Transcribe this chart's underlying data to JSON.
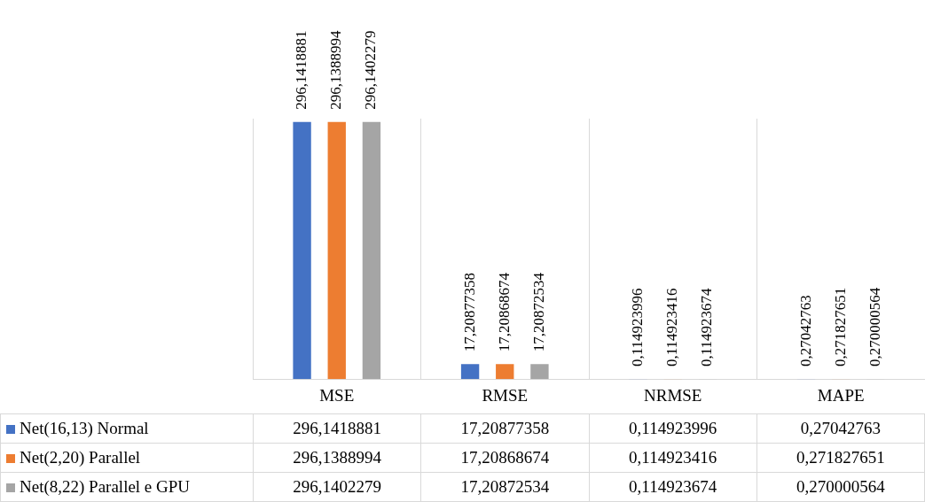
{
  "chart_data": {
    "type": "bar",
    "categories": [
      "MSE",
      "RMSE",
      "NRMSE",
      "MAPE"
    ],
    "legend": "bottom",
    "grid": "x",
    "series": [
      {
        "name": "Net(16,13) Normal",
        "color": "#4472c4",
        "values": [
          296.1418881,
          17.20877358,
          0.114923996,
          0.27042763
        ],
        "value_labels": [
          "296,1418881",
          "17,20877358",
          "0,114923996",
          "0,27042763"
        ]
      },
      {
        "name": "Net(2,20) Parallel",
        "color": "#ed7d31",
        "values": [
          296.1388994,
          17.20868674,
          0.114923416,
          0.271827651
        ],
        "value_labels": [
          "296,1388994",
          "17,20868674",
          "0,114923416",
          "0,271827651"
        ]
      },
      {
        "name": "Net(8,22) Parallel e GPU",
        "color": "#a5a5a5",
        "values": [
          296.1402279,
          17.20872534,
          0.114923674,
          0.270000564
        ],
        "value_labels": [
          "296,1402279",
          "17,20872534",
          "0,114923674",
          "0,270000564"
        ]
      }
    ]
  }
}
